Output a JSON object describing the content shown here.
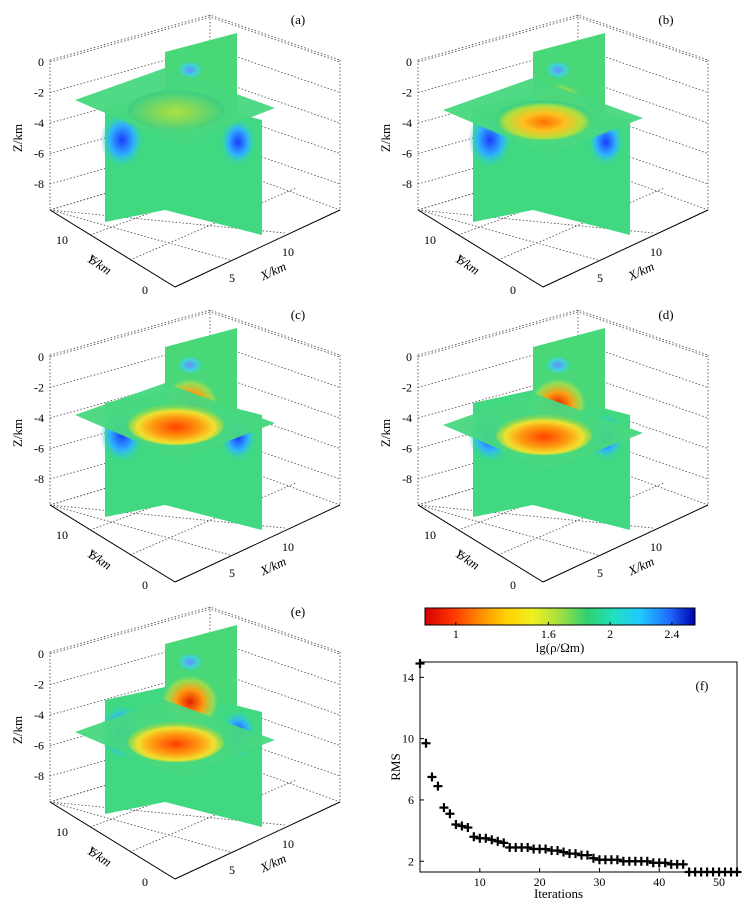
{
  "panels": [
    {
      "label": "(a)",
      "zlabel": "Z/km",
      "ylabel": "Y/km",
      "xlabel": "X/km",
      "zticks": [
        "0",
        "-2",
        "-4",
        "-6",
        "-8"
      ],
      "yticks": [
        "10",
        "5",
        "0"
      ],
      "xticks": [
        "5",
        "10"
      ],
      "slice_depth": "-2.5",
      "features": [
        {
          "kind": "conductive",
          "level": 0.25
        }
      ],
      "resistive_level": 0.0
    },
    {
      "label": "(b)",
      "zlabel": "Z/km",
      "ylabel": "Y/km",
      "xlabel": "X/km",
      "zticks": [
        "0",
        "-2",
        "-4",
        "-6",
        "-8"
      ],
      "yticks": [
        "10",
        "5",
        "0"
      ],
      "xticks": [
        "5",
        "10"
      ],
      "slice_depth": "-3.5",
      "features": [
        {
          "kind": "resistive",
          "level": 0.55
        }
      ],
      "resistive_level": 0.55
    },
    {
      "label": "(c)",
      "zlabel": "Z/km",
      "ylabel": "Y/km",
      "xlabel": "X/km",
      "zticks": [
        "0",
        "-2",
        "-4",
        "-6",
        "-8"
      ],
      "yticks": [
        "10",
        "5",
        "0"
      ],
      "xticks": [
        "5",
        "10"
      ],
      "slice_depth": "-4.5",
      "features": [
        {
          "kind": "resistive",
          "level": 0.8
        }
      ],
      "resistive_level": 0.8
    },
    {
      "label": "(d)",
      "zlabel": "Z/km",
      "ylabel": "Y/km",
      "xlabel": "X/km",
      "zticks": [
        "0",
        "-2",
        "-4",
        "-6",
        "-8"
      ],
      "yticks": [
        "10",
        "5",
        "0"
      ],
      "xticks": [
        "5",
        "10"
      ],
      "slice_depth": "-5.5",
      "features": [
        {
          "kind": "resistive",
          "level": 0.85
        }
      ],
      "resistive_level": 0.85
    },
    {
      "label": "(e)",
      "zlabel": "Z/km",
      "ylabel": "Y/km",
      "xlabel": "X/km",
      "zticks": [
        "0",
        "-2",
        "-4",
        "-6",
        "-8"
      ],
      "yticks": [
        "10",
        "5",
        "0"
      ],
      "xticks": [
        "5",
        "10"
      ],
      "slice_depth": "-6.5",
      "features": [
        {
          "kind": "resistive",
          "level": 0.9
        }
      ],
      "resistive_level": 0.9
    }
  ],
  "colorbar": {
    "label": "lg(ρ/Ωm)",
    "ticks": [
      "1",
      "1.6",
      "2",
      "2.4"
    ],
    "tick_values": [
      1,
      1.6,
      2,
      2.4
    ],
    "range": [
      0.8,
      2.55
    ],
    "colors": [
      "#d40000",
      "#ff3300",
      "#ff8800",
      "#ffd000",
      "#f0f020",
      "#a0e040",
      "#30d070",
      "#20e0c0",
      "#20c8ff",
      "#2070ff",
      "#0000b0"
    ]
  },
  "chart_data": {
    "type": "scatter",
    "panel_label": "(f)",
    "xlabel": "Iterations",
    "ylabel": "RMS",
    "xlim": [
      0,
      53
    ],
    "ylim": [
      1.3,
      15
    ],
    "xticks": [
      "10",
      "20",
      "30",
      "40",
      "50"
    ],
    "yticks": [
      "2",
      "6",
      "10",
      "14"
    ],
    "x": [
      0,
      1,
      2,
      3,
      4,
      5,
      6,
      7,
      8,
      9,
      10,
      11,
      12,
      13,
      14,
      15,
      16,
      17,
      18,
      19,
      20,
      21,
      22,
      23,
      24,
      25,
      26,
      27,
      28,
      29,
      30,
      31,
      32,
      33,
      34,
      35,
      36,
      37,
      38,
      39,
      40,
      41,
      42,
      43,
      44,
      45,
      46,
      47,
      48,
      49,
      50,
      51,
      52,
      53
    ],
    "y": [
      14.9,
      9.7,
      7.5,
      6.9,
      5.5,
      5.1,
      4.4,
      4.3,
      4.2,
      3.6,
      3.5,
      3.5,
      3.4,
      3.3,
      3.2,
      2.9,
      2.9,
      2.9,
      2.9,
      2.8,
      2.8,
      2.8,
      2.7,
      2.7,
      2.6,
      2.5,
      2.5,
      2.4,
      2.4,
      2.2,
      2.1,
      2.1,
      2.1,
      2.1,
      2.0,
      2.0,
      2.0,
      2.0,
      2.0,
      1.9,
      1.9,
      1.9,
      1.8,
      1.8,
      1.8,
      1.3,
      1.3,
      1.3,
      1.3,
      1.3,
      1.3,
      1.3,
      1.3,
      1.3
    ]
  }
}
